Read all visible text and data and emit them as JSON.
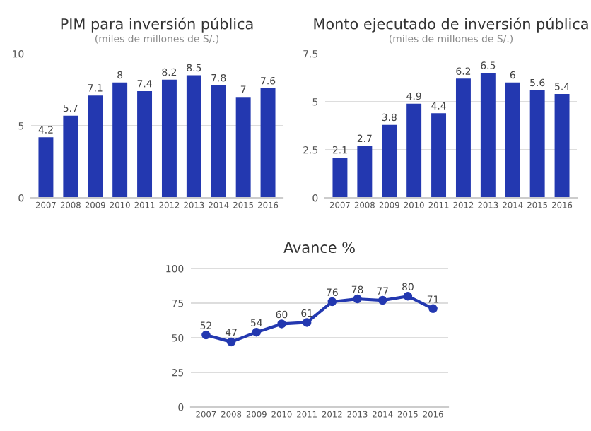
{
  "chart_data": [
    {
      "type": "bar",
      "title": "PIM para inversión pública",
      "subtitle": "(miles de millones de S/.)",
      "categories": [
        "2007",
        "2008",
        "2009",
        "2010",
        "2011",
        "2012",
        "2013",
        "2014",
        "2015",
        "2016"
      ],
      "values": [
        4.2,
        5.7,
        7.1,
        8,
        7.4,
        8.2,
        8.5,
        7.8,
        7,
        7.6
      ],
      "color": "#2338b0",
      "ylim": [
        0,
        10
      ],
      "yticks": [
        0,
        5,
        10
      ],
      "grid": "y",
      "data_labels": true
    },
    {
      "type": "bar",
      "title": "Monto ejecutado de inversión pública",
      "subtitle": "(miles de millones de S/.)",
      "categories": [
        "2007",
        "2008",
        "2009",
        "2010",
        "2011",
        "2012",
        "2013",
        "2014",
        "2015",
        "2016"
      ],
      "values": [
        2.1,
        2.7,
        3.8,
        4.9,
        4.4,
        6.2,
        6.5,
        6,
        5.6,
        5.4
      ],
      "color": "#2338b0",
      "ylim": [
        0,
        7.5
      ],
      "yticks": [
        0,
        2.5,
        5,
        7.5
      ],
      "grid": "y",
      "data_labels": true
    },
    {
      "type": "line",
      "title": "Avance %",
      "categories": [
        "2007",
        "2008",
        "2009",
        "2010",
        "2011",
        "2012",
        "2013",
        "2014",
        "2015",
        "2016"
      ],
      "values": [
        52,
        47,
        54,
        60,
        61,
        76,
        78,
        77,
        80,
        71
      ],
      "color": "#2338b0",
      "ylim": [
        0,
        100
      ],
      "yticks": [
        0,
        25,
        50,
        75,
        100
      ],
      "grid": "y",
      "marker": "circle",
      "line_style": "solid",
      "data_labels": true
    }
  ]
}
